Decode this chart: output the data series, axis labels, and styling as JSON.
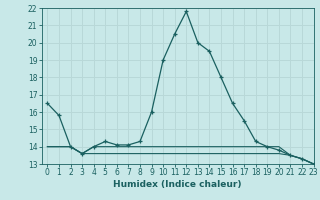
{
  "title": "",
  "xlabel": "Humidex (Indice chaleur)",
  "bg_color": "#c8e8e8",
  "grid_color": "#b8d8d8",
  "line_color": "#1a6060",
  "x_main": [
    0,
    1,
    2,
    3,
    4,
    5,
    6,
    7,
    8,
    9,
    10,
    11,
    12,
    13,
    14,
    15,
    16,
    17,
    18,
    19,
    20,
    21,
    22,
    23
  ],
  "y_main": [
    16.5,
    15.8,
    14.0,
    13.6,
    14.0,
    14.3,
    14.1,
    14.1,
    14.3,
    16.0,
    19.0,
    20.5,
    21.8,
    20.0,
    19.5,
    18.0,
    16.5,
    15.5,
    14.3,
    14.0,
    13.8,
    13.5,
    13.3,
    13.0
  ],
  "y_line2": [
    14.0,
    14.0,
    14.0,
    13.6,
    14.0,
    14.0,
    14.0,
    14.0,
    14.0,
    14.0,
    14.0,
    14.0,
    14.0,
    14.0,
    14.0,
    14.0,
    14.0,
    14.0,
    14.0,
    14.0,
    14.0,
    13.5,
    13.3,
    13.0
  ],
  "y_line3": [
    14.0,
    14.0,
    14.0,
    13.6,
    13.6,
    13.6,
    13.6,
    13.6,
    13.6,
    13.6,
    13.6,
    13.6,
    13.6,
    13.6,
    13.6,
    13.6,
    13.6,
    13.6,
    13.6,
    13.6,
    13.6,
    13.5,
    13.3,
    13.0
  ],
  "ylim": [
    13,
    22
  ],
  "xlim": [
    -0.5,
    23
  ],
  "yticks": [
    13,
    14,
    15,
    16,
    17,
    18,
    19,
    20,
    21,
    22
  ],
  "xticks": [
    0,
    1,
    2,
    3,
    4,
    5,
    6,
    7,
    8,
    9,
    10,
    11,
    12,
    13,
    14,
    15,
    16,
    17,
    18,
    19,
    20,
    21,
    22,
    23
  ],
  "tick_fontsize": 5.5,
  "xlabel_fontsize": 6.5,
  "marker_size": 3,
  "lw_main": 0.9,
  "lw_minor": 0.8
}
